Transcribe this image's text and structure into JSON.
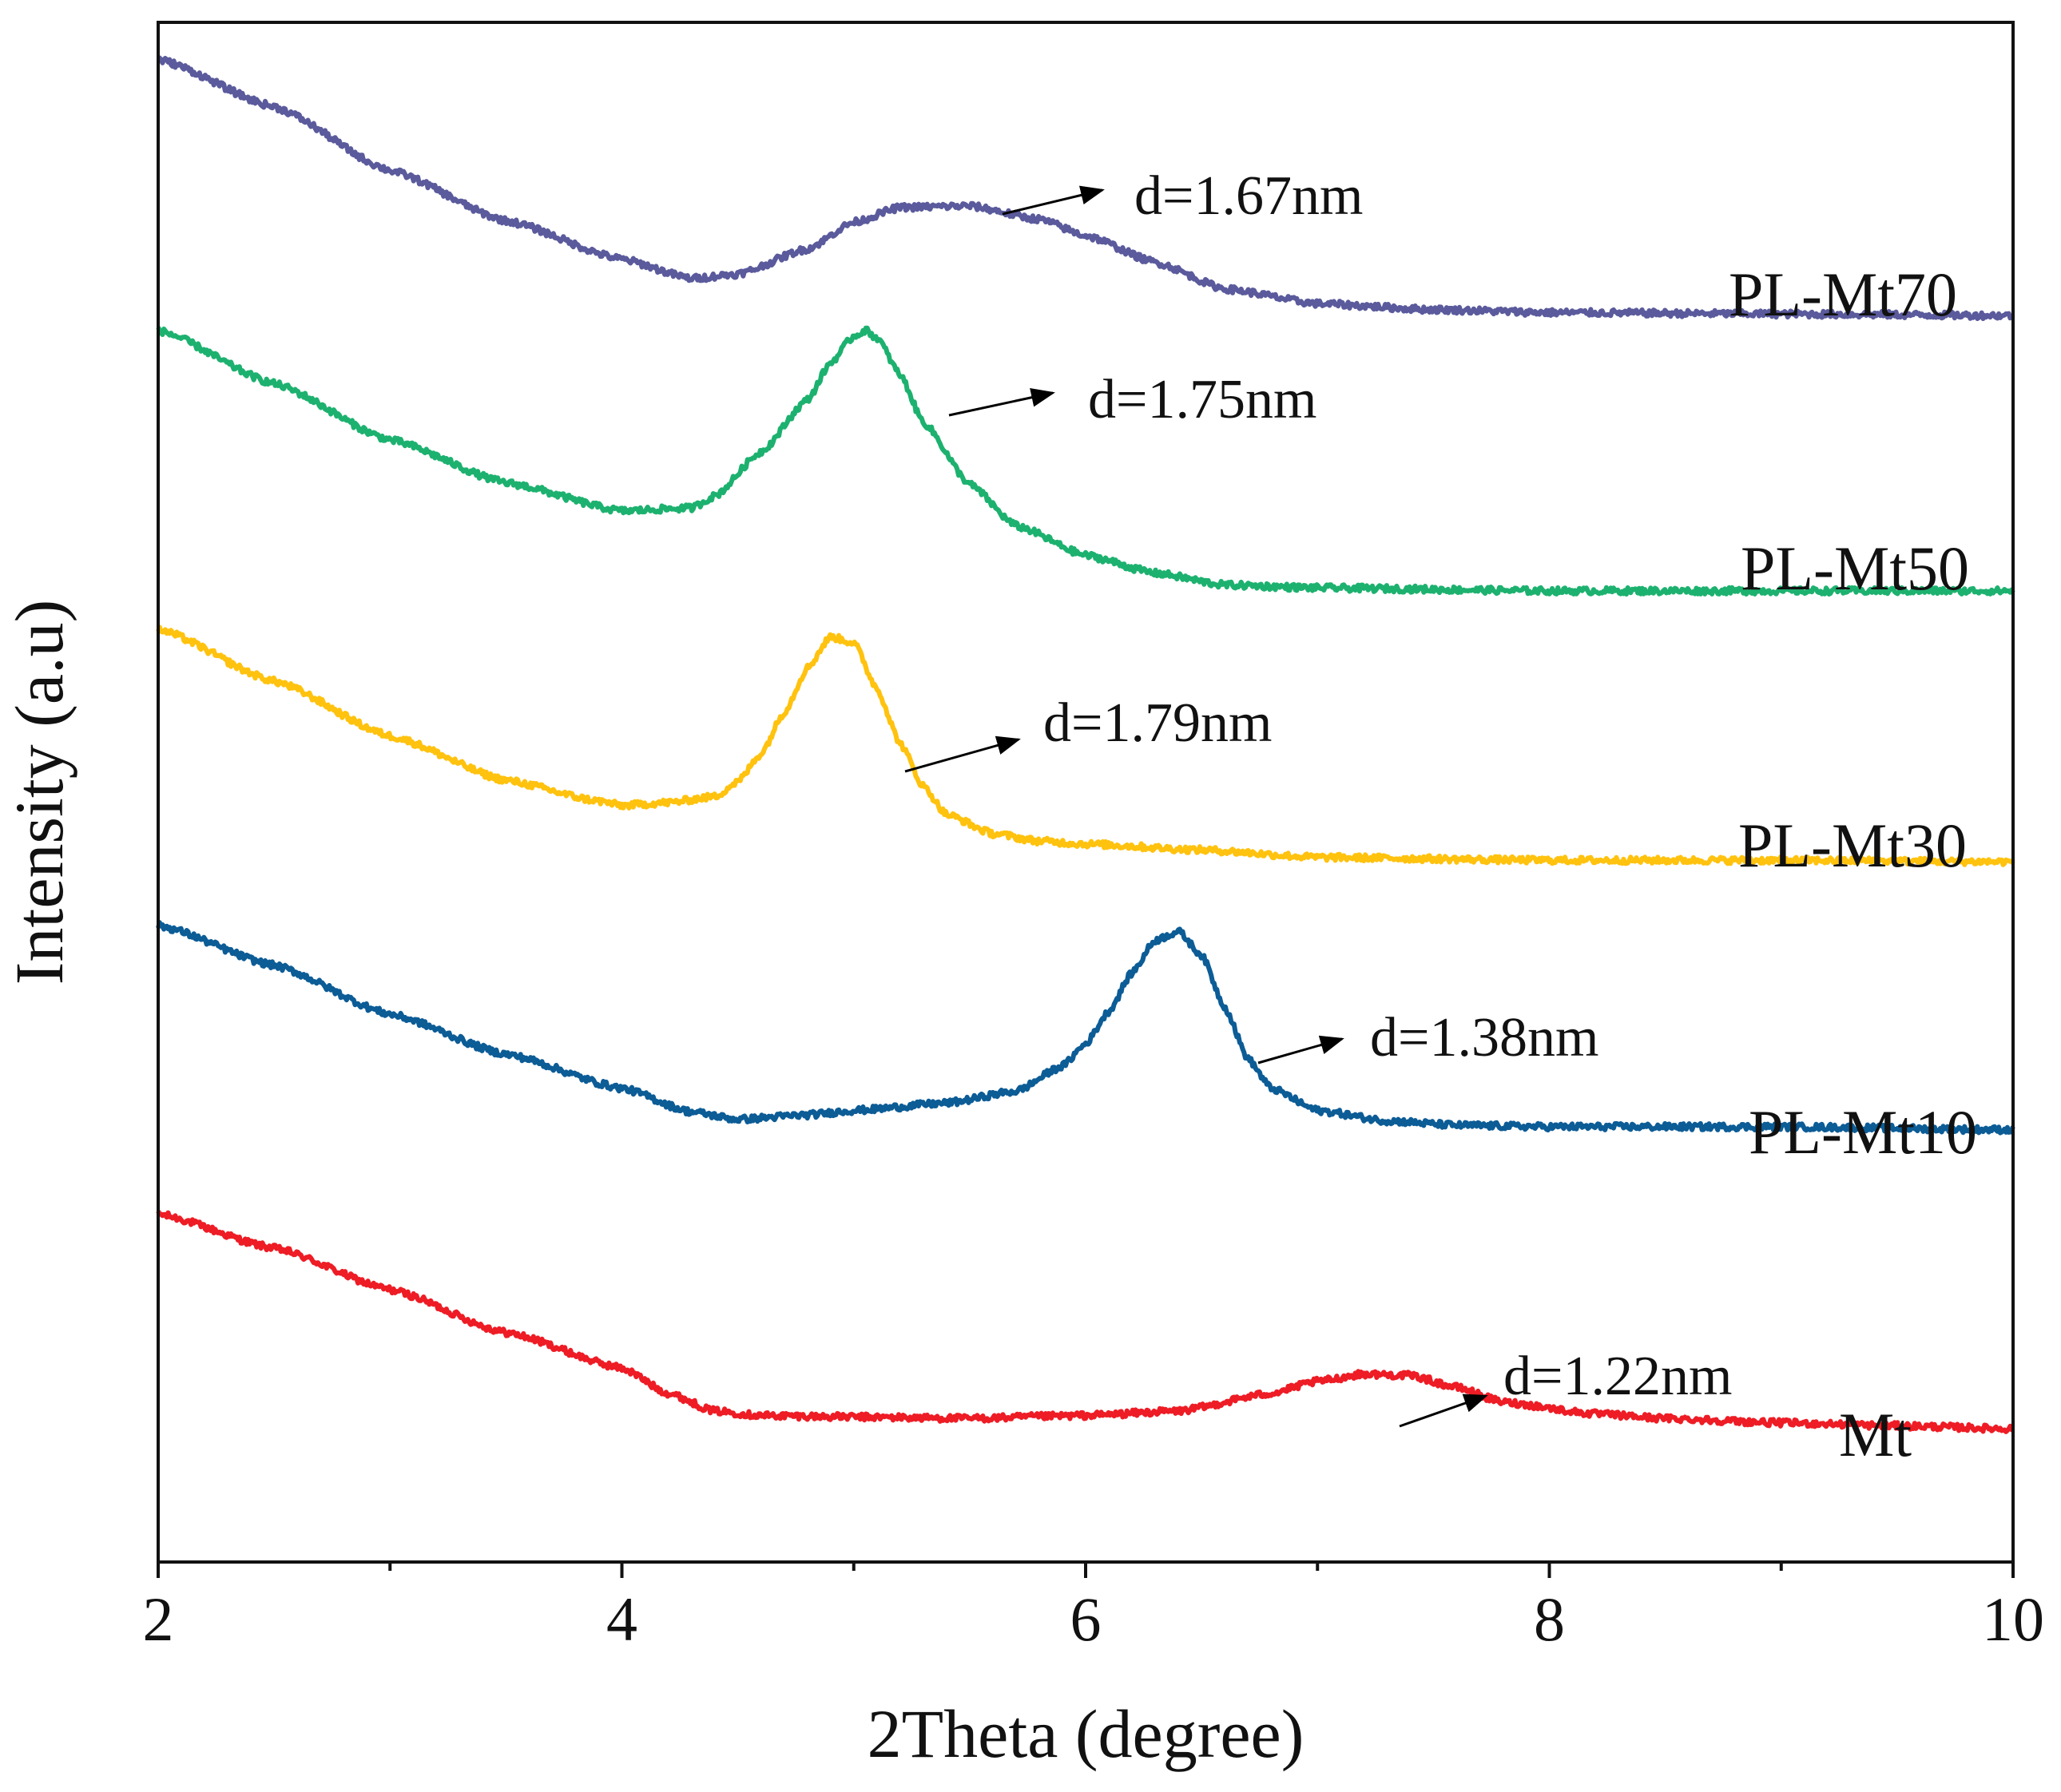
{
  "chart_data": {
    "type": "line",
    "title": "",
    "xlabel": "2Theta (degree)",
    "ylabel": "Intensity (a.u)",
    "xlim": [
      2,
      10
    ],
    "ylim": [
      0,
      10.4
    ],
    "xticks": [
      2,
      4,
      6,
      8,
      10
    ],
    "xtick_labels": [
      "2",
      "4",
      "6",
      "8",
      "10"
    ],
    "minor_xticks": [
      3,
      5,
      7,
      9
    ],
    "yticks_shown": false,
    "grid": false,
    "legend": "none",
    "series": [
      {
        "name": "Mt",
        "color": "#ee1c25",
        "points": [
          [
            2.0,
            2.35
          ],
          [
            2.5,
            2.12
          ],
          [
            3.0,
            1.84
          ],
          [
            3.5,
            1.55
          ],
          [
            4.0,
            1.31
          ],
          [
            4.2,
            1.14
          ],
          [
            4.4,
            1.02
          ],
          [
            4.6,
            0.99
          ],
          [
            5.0,
            0.98
          ],
          [
            5.5,
            0.97
          ],
          [
            6.0,
            0.99
          ],
          [
            6.4,
            1.02
          ],
          [
            6.8,
            1.14
          ],
          [
            7.0,
            1.22
          ],
          [
            7.2,
            1.27
          ],
          [
            7.4,
            1.26
          ],
          [
            7.6,
            1.18
          ],
          [
            7.8,
            1.08
          ],
          [
            8.2,
            1.0
          ],
          [
            8.5,
            0.97
          ],
          [
            9.0,
            0.94
          ],
          [
            9.5,
            0.92
          ],
          [
            10.0,
            0.9
          ]
        ],
        "annotation": "d=1.22nm",
        "annotation_at": [
          7.25,
          1.27
        ]
      },
      {
        "name": "PL-Mt10",
        "color": "#0c5c96",
        "points": [
          [
            2.0,
            4.3
          ],
          [
            2.5,
            4.03
          ],
          [
            3.0,
            3.7
          ],
          [
            3.5,
            3.43
          ],
          [
            4.0,
            3.2
          ],
          [
            4.3,
            3.04
          ],
          [
            4.5,
            2.99
          ],
          [
            4.8,
            3.02
          ],
          [
            5.0,
            3.05
          ],
          [
            5.4,
            3.1
          ],
          [
            5.7,
            3.18
          ],
          [
            5.9,
            3.35
          ],
          [
            6.0,
            3.5
          ],
          [
            6.1,
            3.72
          ],
          [
            6.2,
            3.98
          ],
          [
            6.3,
            4.2
          ],
          [
            6.4,
            4.26
          ],
          [
            6.5,
            4.1
          ],
          [
            6.6,
            3.75
          ],
          [
            6.7,
            3.4
          ],
          [
            6.8,
            3.2
          ],
          [
            7.0,
            3.05
          ],
          [
            7.3,
            2.98
          ],
          [
            7.6,
            2.95
          ],
          [
            8.0,
            2.94
          ],
          [
            9.0,
            2.94
          ],
          [
            10.0,
            2.92
          ]
        ],
        "annotation": "d=1.38nm",
        "annotation_at": [
          6.4,
          4.26
        ]
      },
      {
        "name": "PL-Mt30",
        "color": "#ffc20e",
        "points": [
          [
            2.0,
            6.3
          ],
          [
            2.5,
            5.95
          ],
          [
            3.0,
            5.58
          ],
          [
            3.5,
            5.28
          ],
          [
            3.9,
            5.14
          ],
          [
            4.0,
            5.11
          ],
          [
            4.2,
            5.13
          ],
          [
            4.4,
            5.17
          ],
          [
            4.5,
            5.27
          ],
          [
            4.6,
            5.46
          ],
          [
            4.7,
            5.74
          ],
          [
            4.8,
            6.04
          ],
          [
            4.9,
            6.25
          ],
          [
            5.0,
            6.21
          ],
          [
            5.1,
            5.9
          ],
          [
            5.2,
            5.53
          ],
          [
            5.3,
            5.24
          ],
          [
            5.4,
            5.05
          ],
          [
            5.6,
            4.92
          ],
          [
            5.8,
            4.87
          ],
          [
            6.0,
            4.85
          ],
          [
            6.5,
            4.81
          ],
          [
            7.0,
            4.76
          ],
          [
            8.0,
            4.74
          ],
          [
            9.0,
            4.74
          ],
          [
            10.0,
            4.73
          ]
        ],
        "annotation": "d=1.79nm",
        "annotation_at": [
          4.93,
          6.25
        ]
      },
      {
        "name": "PL-Mt50",
        "color": "#1db16f",
        "points": [
          [
            2.0,
            8.32
          ],
          [
            2.5,
            7.96
          ],
          [
            3.0,
            7.58
          ],
          [
            3.5,
            7.29
          ],
          [
            4.0,
            7.1
          ],
          [
            4.3,
            7.12
          ],
          [
            4.4,
            7.2
          ],
          [
            4.6,
            7.5
          ],
          [
            4.8,
            7.85
          ],
          [
            4.9,
            8.1
          ],
          [
            5.0,
            8.28
          ],
          [
            5.05,
            8.32
          ],
          [
            5.1,
            8.27
          ],
          [
            5.2,
            8.02
          ],
          [
            5.3,
            7.7
          ],
          [
            5.5,
            7.28
          ],
          [
            5.7,
            7.0
          ],
          [
            6.0,
            6.8
          ],
          [
            6.3,
            6.68
          ],
          [
            6.6,
            6.6
          ],
          [
            7.0,
            6.58
          ],
          [
            8.0,
            6.56
          ],
          [
            9.0,
            6.56
          ],
          [
            10.0,
            6.56
          ]
        ],
        "annotation": "d=1.75nm",
        "annotation_at": [
          5.05,
          8.32
        ]
      },
      {
        "name": "PL-Mt70",
        "color": "#5a5a9c",
        "points": [
          [
            2.0,
            10.15
          ],
          [
            2.5,
            9.83
          ],
          [
            3.0,
            9.4
          ],
          [
            3.5,
            9.06
          ],
          [
            4.0,
            8.8
          ],
          [
            4.3,
            8.67
          ],
          [
            4.5,
            8.7
          ],
          [
            4.8,
            8.87
          ],
          [
            5.0,
            9.05
          ],
          [
            5.2,
            9.15
          ],
          [
            5.5,
            9.16
          ],
          [
            5.8,
            9.07
          ],
          [
            6.0,
            8.96
          ],
          [
            6.3,
            8.78
          ],
          [
            6.6,
            8.6
          ],
          [
            7.0,
            8.5
          ],
          [
            7.5,
            8.46
          ],
          [
            8.0,
            8.44
          ],
          [
            9.0,
            8.43
          ],
          [
            10.0,
            8.42
          ]
        ],
        "annotation": "d=1.67nm",
        "annotation_at": [
          5.45,
          9.16
        ]
      }
    ]
  }
}
